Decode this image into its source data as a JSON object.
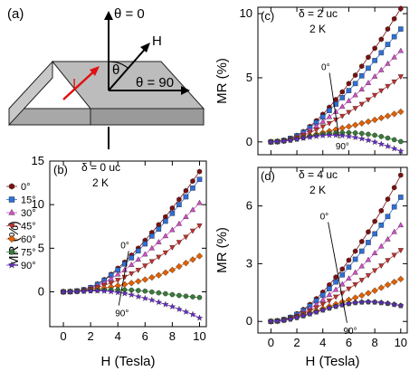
{
  "schematic": {
    "label": "(a)",
    "theta_zero": "θ = 0",
    "theta_ninety": "θ = 90",
    "theta": "θ",
    "field": "H",
    "current": "I"
  },
  "colors": {
    "0°": "#7a1010",
    "15°": "#2f6fd6",
    "30°": "#d24fc8",
    "45°": "#c0302c",
    "60°": "#e06000",
    "75°": "#3a7a3a",
    "90°": "#6a28d8"
  },
  "chart_data": [
    {
      "id": "b",
      "type": "scatter",
      "panel_label": "(b)",
      "notes": [
        "δ = 0 uc",
        "2 K"
      ],
      "xlabel": "H (Tesla)",
      "ylabel": "MR (%)",
      "xlim": [
        -1,
        10.5
      ],
      "ylim": [
        -4,
        15
      ],
      "xticks": [
        0,
        2,
        4,
        6,
        8,
        10
      ],
      "xtick_labels": [
        "0",
        "2",
        "4",
        "6",
        "8",
        "10"
      ],
      "yticks": [
        0,
        5,
        10,
        15
      ],
      "ytick_labels": [
        "0",
        "5",
        "10",
        "15"
      ],
      "legend_position": "left",
      "annotations": {
        "top": "0°",
        "bottom": "90°"
      },
      "x": [
        0,
        0.5,
        1,
        1.5,
        2,
        2.5,
        3,
        3.5,
        4,
        4.5,
        5,
        5.5,
        6,
        6.5,
        7,
        7.5,
        8,
        8.5,
        9,
        9.5,
        10
      ],
      "series": [
        {
          "name": "0°",
          "marker": "hexagon",
          "values": [
            0,
            0.02,
            0.1,
            0.25,
            0.5,
            0.9,
            1.4,
            2.0,
            2.7,
            3.4,
            4.2,
            5.0,
            5.9,
            6.8,
            7.7,
            8.6,
            9.6,
            10.6,
            11.6,
            12.7,
            13.8
          ]
        },
        {
          "name": "15°",
          "marker": "square",
          "values": [
            0,
            0.02,
            0.1,
            0.24,
            0.48,
            0.85,
            1.3,
            1.9,
            2.5,
            3.2,
            3.9,
            4.7,
            5.5,
            6.4,
            7.2,
            8.1,
            9.0,
            10.0,
            10.9,
            11.9,
            12.9
          ]
        },
        {
          "name": "30°",
          "marker": "triangle-up",
          "values": [
            0,
            0.02,
            0.09,
            0.22,
            0.42,
            0.7,
            1.05,
            1.5,
            2.0,
            2.5,
            3.1,
            3.7,
            4.3,
            5.0,
            5.7,
            6.4,
            7.1,
            7.8,
            8.6,
            9.4,
            10.2
          ]
        },
        {
          "name": "45°",
          "marker": "triangle-down",
          "values": [
            0,
            0.02,
            0.08,
            0.18,
            0.33,
            0.52,
            0.75,
            1.0,
            1.35,
            1.7,
            2.1,
            2.5,
            3.0,
            3.5,
            4.0,
            4.5,
            5.1,
            5.7,
            6.3,
            7.0,
            7.6
          ]
        },
        {
          "name": "60°",
          "marker": "diamond",
          "values": [
            0,
            0.02,
            0.06,
            0.12,
            0.2,
            0.3,
            0.42,
            0.55,
            0.7,
            0.85,
            1.0,
            1.2,
            1.4,
            1.65,
            1.9,
            2.2,
            2.5,
            2.9,
            3.3,
            3.7,
            4.1
          ]
        },
        {
          "name": "75°",
          "marker": "circle",
          "values": [
            0,
            0.02,
            0.05,
            0.09,
            0.13,
            0.17,
            0.2,
            0.22,
            0.23,
            0.22,
            0.2,
            0.15,
            0.08,
            -0.02,
            -0.12,
            -0.22,
            -0.32,
            -0.42,
            -0.5,
            -0.58,
            -0.65
          ]
        },
        {
          "name": "90°",
          "marker": "star",
          "values": [
            0,
            0.01,
            0.03,
            0.06,
            0.09,
            0.1,
            0.08,
            0.02,
            -0.08,
            -0.2,
            -0.35,
            -0.55,
            -0.75,
            -0.95,
            -1.2,
            -1.45,
            -1.7,
            -2.0,
            -2.3,
            -2.6,
            -3.0
          ]
        }
      ]
    },
    {
      "id": "c",
      "type": "scatter",
      "panel_label": "(c)",
      "notes": [
        "δ = 2 uc",
        "2 K"
      ],
      "xlabel": "",
      "ylabel": "MR (%)",
      "xlim": [
        -1,
        10.5
      ],
      "ylim": [
        -1,
        10.5
      ],
      "xticks": [
        0,
        2,
        4,
        6,
        8,
        10
      ],
      "xtick_labels": [],
      "yticks": [
        0,
        5,
        10
      ],
      "ytick_labels": [
        "0",
        "5",
        "10"
      ],
      "annotations": {
        "top": "0°",
        "bottom": "90°"
      },
      "x": [
        0,
        0.5,
        1,
        1.5,
        2,
        2.5,
        3,
        3.5,
        4,
        4.5,
        5,
        5.5,
        6,
        6.5,
        7,
        7.5,
        8,
        8.5,
        9,
        9.5,
        10
      ],
      "series": [
        {
          "name": "0°",
          "marker": "hexagon",
          "values": [
            0,
            0.03,
            0.12,
            0.28,
            0.5,
            0.8,
            1.2,
            1.65,
            2.15,
            2.7,
            3.3,
            3.9,
            4.55,
            5.2,
            5.9,
            6.6,
            7.3,
            8.0,
            8.8,
            9.6,
            10.4
          ]
        },
        {
          "name": "15°",
          "marker": "square",
          "values": [
            0,
            0.03,
            0.12,
            0.27,
            0.48,
            0.75,
            1.1,
            1.5,
            1.95,
            2.45,
            2.95,
            3.45,
            4.0,
            4.55,
            5.15,
            5.75,
            6.35,
            6.95,
            7.6,
            8.2,
            8.8
          ]
        },
        {
          "name": "30°",
          "marker": "triangle-up",
          "values": [
            0,
            0.03,
            0.11,
            0.24,
            0.42,
            0.65,
            0.92,
            1.23,
            1.58,
            1.95,
            2.35,
            2.75,
            3.2,
            3.65,
            4.1,
            4.6,
            5.1,
            5.6,
            6.1,
            6.6,
            7.1
          ]
        },
        {
          "name": "45°",
          "marker": "triangle-down",
          "values": [
            0,
            0.03,
            0.1,
            0.21,
            0.35,
            0.52,
            0.72,
            0.95,
            1.2,
            1.46,
            1.74,
            2.02,
            2.32,
            2.63,
            2.95,
            3.3,
            3.65,
            4.0,
            4.35,
            4.7,
            5.1
          ]
        },
        {
          "name": "60°",
          "marker": "diamond",
          "values": [
            0,
            0.02,
            0.08,
            0.16,
            0.26,
            0.37,
            0.48,
            0.6,
            0.72,
            0.84,
            0.96,
            1.08,
            1.2,
            1.32,
            1.45,
            1.58,
            1.72,
            1.87,
            2.02,
            2.18,
            2.35
          ]
        },
        {
          "name": "75°",
          "marker": "circle",
          "values": [
            0,
            0.02,
            0.07,
            0.14,
            0.22,
            0.32,
            0.42,
            0.52,
            0.6,
            0.66,
            0.7,
            0.72,
            0.72,
            0.7,
            0.66,
            0.6,
            0.52,
            0.42,
            0.3,
            0.17,
            0.03
          ]
        },
        {
          "name": "90°",
          "marker": "star",
          "values": [
            0,
            0.02,
            0.07,
            0.13,
            0.21,
            0.29,
            0.37,
            0.44,
            0.49,
            0.52,
            0.52,
            0.49,
            0.43,
            0.35,
            0.25,
            0.13,
            -0.01,
            -0.17,
            -0.34,
            -0.52,
            -0.72
          ]
        }
      ]
    },
    {
      "id": "d",
      "type": "scatter",
      "panel_label": "(d)",
      "notes": [
        "δ = 4 uc",
        "2 K"
      ],
      "xlabel": "H (Tesla)",
      "ylabel": "MR (%)",
      "xlim": [
        -1,
        10.5
      ],
      "ylim": [
        -0.6,
        8
      ],
      "xticks": [
        0,
        2,
        4,
        6,
        8,
        10
      ],
      "xtick_labels": [
        "0",
        "2",
        "4",
        "6",
        "8",
        "10"
      ],
      "yticks": [
        0,
        3,
        6
      ],
      "ytick_labels": [
        "0",
        "3",
        "6"
      ],
      "annotations": {
        "top": "0°",
        "bottom": "90°"
      },
      "x": [
        0,
        0.5,
        1,
        1.5,
        2,
        2.5,
        3,
        3.5,
        4,
        4.5,
        5,
        5.5,
        6,
        6.5,
        7,
        7.5,
        8,
        8.5,
        9,
        9.5,
        10
      ],
      "series": [
        {
          "name": "0°",
          "marker": "hexagon",
          "values": [
            0,
            0.03,
            0.1,
            0.22,
            0.4,
            0.62,
            0.88,
            1.18,
            1.52,
            1.9,
            2.3,
            2.72,
            3.18,
            3.65,
            4.15,
            4.65,
            5.2,
            5.75,
            6.35,
            6.95,
            7.6
          ]
        },
        {
          "name": "15°",
          "marker": "square",
          "values": [
            0,
            0.03,
            0.1,
            0.21,
            0.37,
            0.57,
            0.8,
            1.07,
            1.37,
            1.7,
            2.05,
            2.42,
            2.82,
            3.23,
            3.65,
            4.1,
            4.55,
            5.0,
            5.45,
            5.95,
            6.45
          ]
        },
        {
          "name": "30°",
          "marker": "triangle-up",
          "values": [
            0,
            0.03,
            0.09,
            0.19,
            0.32,
            0.48,
            0.67,
            0.88,
            1.12,
            1.38,
            1.65,
            1.93,
            2.23,
            2.54,
            2.87,
            3.2,
            3.55,
            3.9,
            4.27,
            4.65,
            5.0
          ]
        },
        {
          "name": "45°",
          "marker": "triangle-down",
          "values": [
            0,
            0.03,
            0.08,
            0.17,
            0.28,
            0.41,
            0.56,
            0.72,
            0.9,
            1.08,
            1.28,
            1.48,
            1.7,
            1.92,
            2.15,
            2.4,
            2.65,
            2.9,
            3.18,
            3.45,
            3.7
          ]
        },
        {
          "name": "60°",
          "marker": "diamond",
          "values": [
            0,
            0.02,
            0.07,
            0.14,
            0.23,
            0.33,
            0.44,
            0.55,
            0.67,
            0.78,
            0.9,
            1.01,
            1.12,
            1.23,
            1.35,
            1.47,
            1.6,
            1.75,
            1.9,
            2.05,
            2.2
          ]
        },
        {
          "name": "75°",
          "marker": "circle",
          "values": [
            0,
            0.02,
            0.06,
            0.12,
            0.2,
            0.29,
            0.39,
            0.49,
            0.59,
            0.69,
            0.78,
            0.86,
            0.92,
            0.97,
            1.0,
            1.01,
            1.0,
            0.97,
            0.93,
            0.88,
            0.82
          ]
        },
        {
          "name": "90°",
          "marker": "star",
          "values": [
            0,
            0.02,
            0.06,
            0.12,
            0.2,
            0.29,
            0.39,
            0.49,
            0.59,
            0.69,
            0.78,
            0.86,
            0.93,
            0.98,
            1.01,
            1.02,
            1.01,
            0.98,
            0.94,
            0.88,
            0.82
          ]
        }
      ]
    }
  ]
}
